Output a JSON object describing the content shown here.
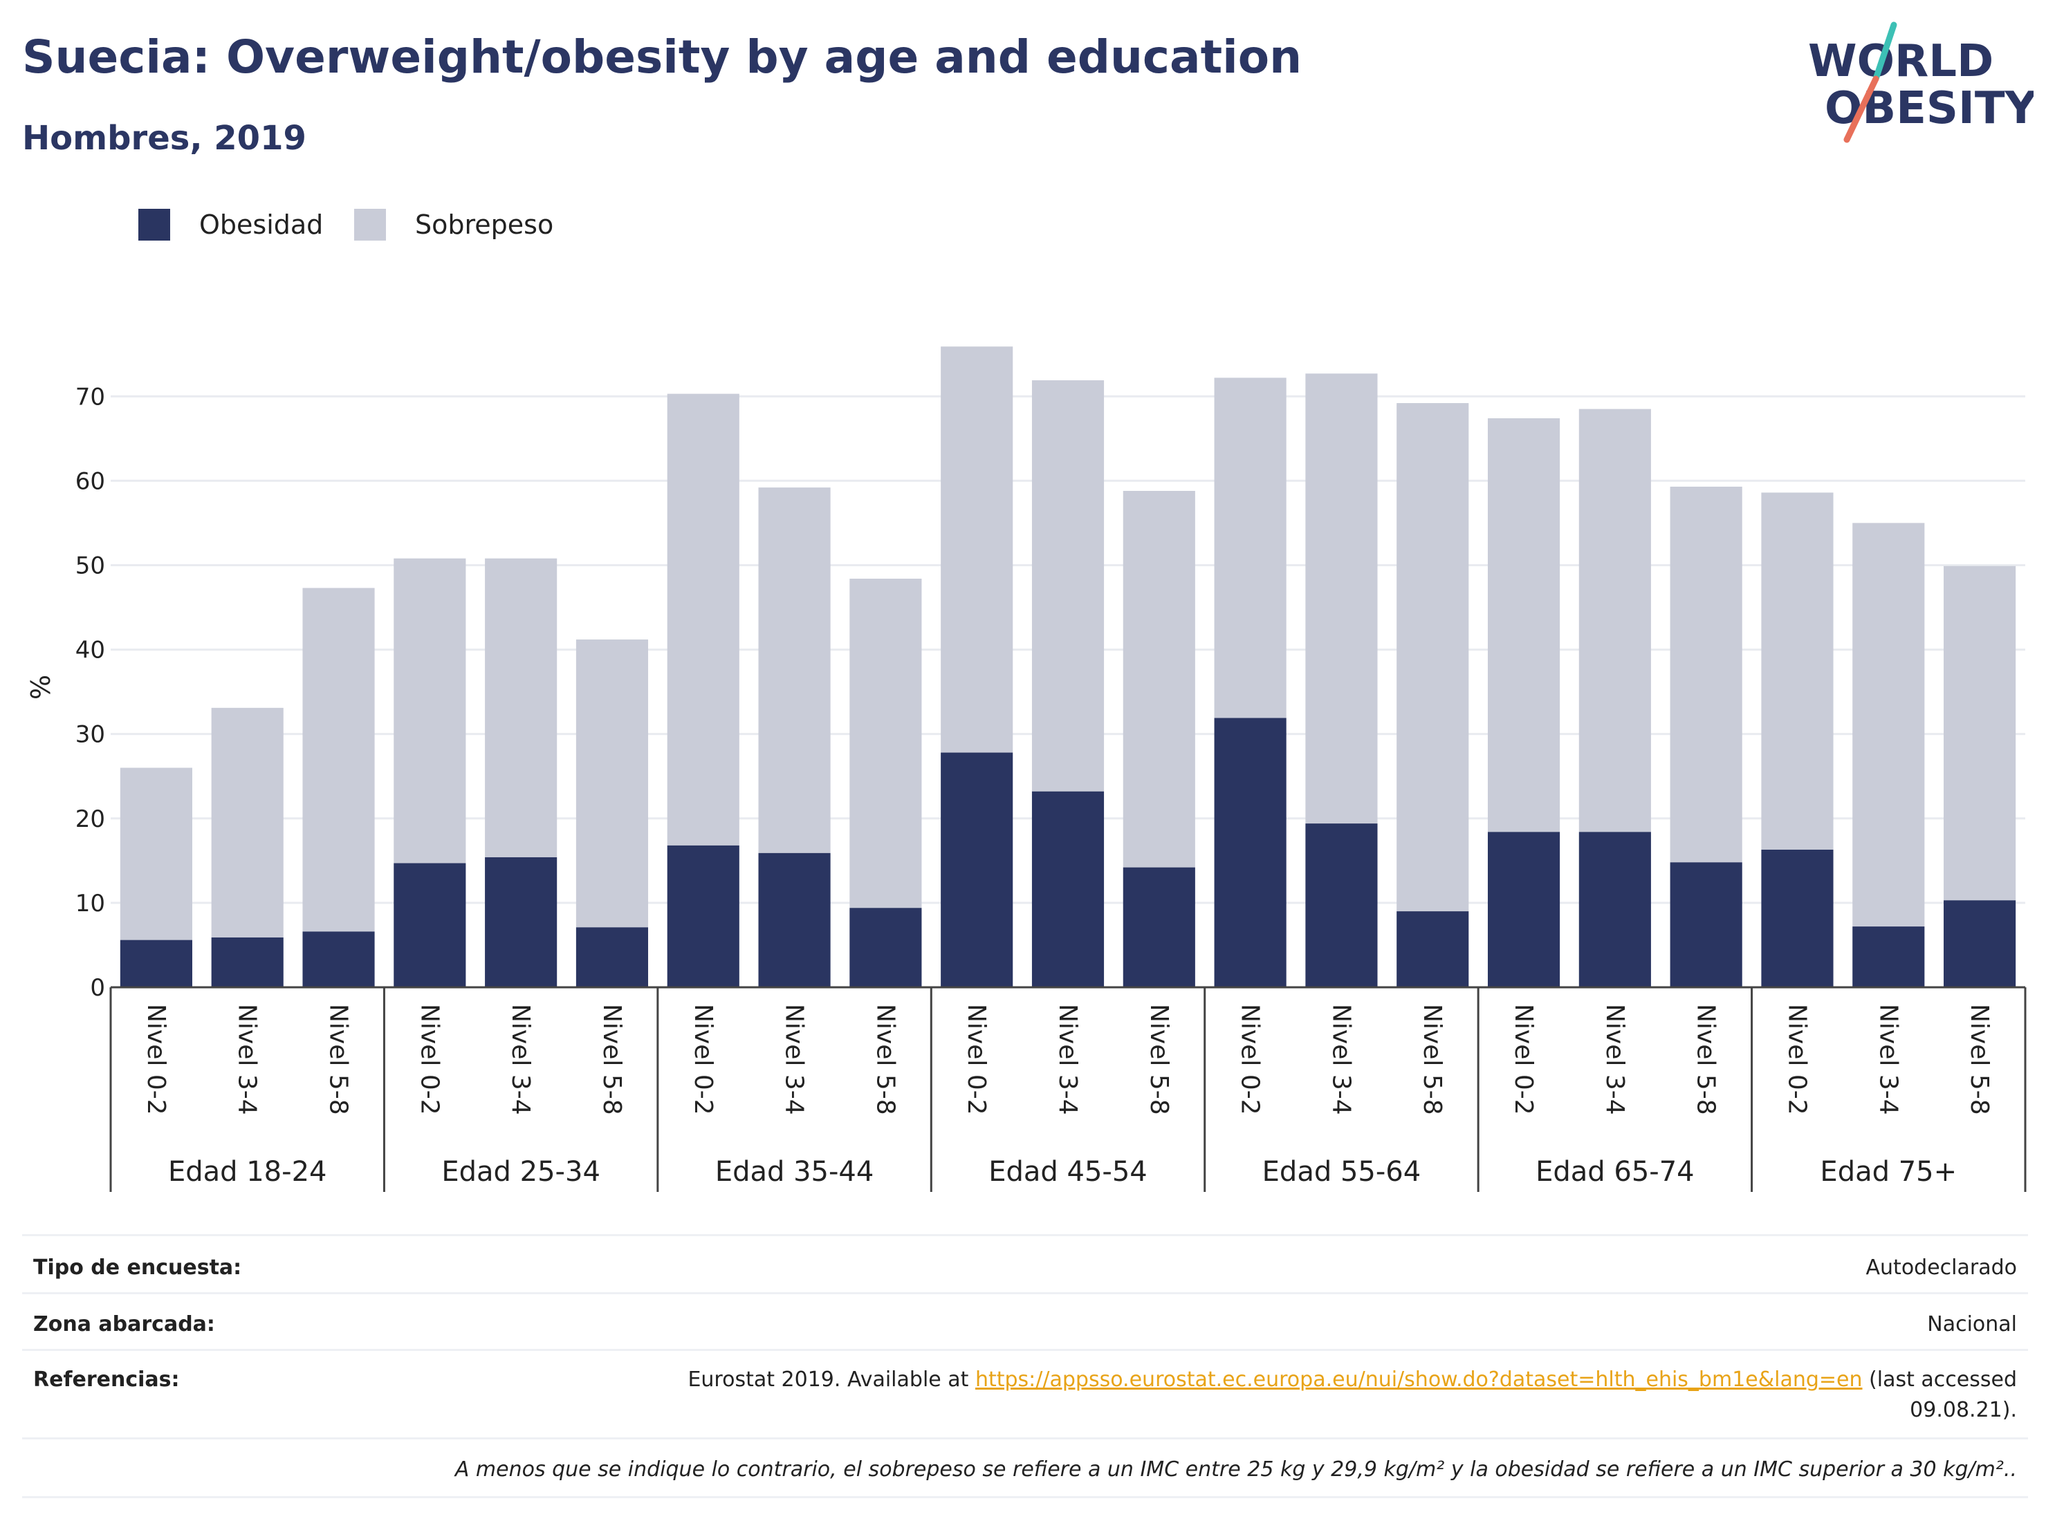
{
  "header": {
    "title": "Suecia: Overweight/obesity by age and education",
    "subtitle": "Hombres, 2019"
  },
  "logo": {
    "line1": "WORLD",
    "line2": "OBESITY"
  },
  "colors": {
    "obesity": "#2a3561",
    "overweight": "#c9ccd8",
    "text": "#2b3663",
    "grid": "#e9ebf0",
    "logo_teal": "#3cc0b5",
    "logo_coral": "#e8705a"
  },
  "chart_data": {
    "type": "bar",
    "stacked": true,
    "ylabel": "%",
    "ylim": [
      0,
      76
    ],
    "yticks": [
      0,
      10,
      20,
      30,
      40,
      50,
      60,
      70
    ],
    "legend": {
      "placement": "top-left",
      "entries": [
        "Obesidad",
        "Sobrepeso"
      ]
    },
    "groups": [
      "Edad 18-24",
      "Edad 25-34",
      "Edad 35-44",
      "Edad 45-54",
      "Edad 55-64",
      "Edad 65-74",
      "Edad 75+"
    ],
    "subcategories": [
      "Nivel 0-2",
      "Nivel 3-4",
      "Nivel 5-8"
    ],
    "series": [
      {
        "name": "Obesidad",
        "values": [
          5.6,
          5.9,
          6.6,
          14.7,
          15.4,
          7.1,
          16.8,
          15.9,
          9.4,
          27.8,
          23.2,
          14.2,
          31.9,
          19.4,
          9.0,
          18.4,
          18.4,
          14.8,
          16.3,
          7.2,
          10.3
        ]
      },
      {
        "name": "Sobrepeso",
        "values": [
          20.4,
          27.2,
          40.7,
          36.1,
          35.4,
          34.1,
          53.5,
          43.3,
          39.0,
          48.1,
          48.7,
          44.6,
          40.3,
          53.3,
          60.2,
          49.0,
          50.1,
          44.5,
          42.3,
          47.8,
          39.6
        ]
      }
    ]
  },
  "meta": {
    "survey_label": "Tipo de encuesta:",
    "survey_value": "Autodeclarado",
    "area_label": "Zona abarcada:",
    "area_value": "Nacional",
    "ref_label": "Referencias:",
    "ref_prefix": "Eurostat 2019. Available at ",
    "ref_link": "https://appsso.eurostat.ec.europa.eu/nui/show.do?dataset=hlth_ehis_bm1e&lang=en",
    "ref_suffix": " (last accessed 09.08.21).",
    "footnote": "A menos que se indique lo contrario, el sobrepeso se refiere a un IMC entre 25 kg y 29,9 kg/m² y la obesidad se refiere a un IMC superior a 30 kg/m².."
  }
}
